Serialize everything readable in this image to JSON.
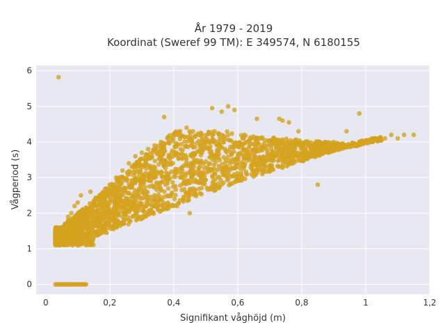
{
  "chart_data": {
    "type": "scatter",
    "title_lines": [
      "År 1979 - 2019",
      "Koordinat (Sweref 99 TM): E 349574, N 6180155"
    ],
    "xlabel": "Signifikant våghöjd (m)",
    "ylabel": "Vågperiod (s)",
    "xlim": [
      -0.03,
      1.2
    ],
    "ylim": [
      -0.28,
      6.15
    ],
    "x_ticks": [
      0,
      0.2,
      0.4,
      0.6,
      0.8,
      1.0,
      1.2
    ],
    "x_tick_labels": [
      "0",
      "0,2",
      "0,4",
      "0,6",
      "0,8",
      "1",
      "1,2"
    ],
    "y_ticks": [
      0,
      1,
      2,
      3,
      4,
      5,
      6
    ],
    "y_tick_labels": [
      "0",
      "1",
      "2",
      "3",
      "4",
      "5",
      "6"
    ],
    "grid": true,
    "marker_color": "#d4a21e",
    "plot_background": "#e8e8f2",
    "series": [
      {
        "x": [
          0.04,
          0.03,
          0.05,
          0.06,
          0.07,
          0.08,
          0.09,
          0.1,
          0.11,
          0.12,
          0.13,
          0.03,
          0.04,
          0.05,
          0.06,
          0.07,
          0.08,
          0.09,
          0.1,
          0.11,
          0.12,
          0.13,
          0.14,
          0.15,
          0.04,
          0.06,
          0.08,
          0.1,
          0.12,
          0.14,
          0.16,
          0.18,
          0.2,
          0.22,
          0.24,
          0.26,
          0.28,
          0.3,
          0.32,
          0.34,
          0.36,
          0.38,
          0.4,
          0.42,
          0.44,
          0.46,
          0.48,
          0.5,
          0.52,
          0.54,
          0.56,
          0.58,
          0.6,
          0.62,
          0.64,
          0.66,
          0.68,
          0.7,
          0.72,
          0.74,
          0.76,
          0.78,
          0.8,
          0.82,
          0.84,
          0.86,
          0.88,
          0.9,
          0.92,
          0.94,
          0.96,
          0.98,
          1.0,
          1.02,
          1.04,
          1.06,
          1.08,
          1.1,
          1.12,
          1.15,
          0.52,
          0.55,
          0.57,
          0.59,
          0.62,
          0.66,
          0.73,
          0.76,
          0.74,
          0.79,
          0.9,
          0.94,
          0.98,
          0.37,
          0.41,
          0.45,
          0.85,
          0.2,
          0.25,
          0.3,
          0.35,
          0.28
        ],
        "y": [
          5.82,
          1.5,
          1.3,
          1.6,
          1.8,
          2.0,
          2.2,
          2.3,
          2.5,
          2.1,
          1.9,
          1.2,
          1.4,
          1.5,
          1.7,
          1.9,
          1.2,
          1.3,
          1.1,
          1.6,
          1.4,
          1.8,
          2.6,
          2.2,
          0,
          0,
          0,
          0,
          0,
          2.0,
          2.4,
          2.6,
          2.8,
          3.0,
          3.2,
          3.4,
          3.6,
          3.7,
          3.8,
          3.9,
          4.0,
          4.1,
          4.2,
          4.3,
          4.4,
          4.3,
          4.2,
          4.1,
          4.0,
          3.9,
          3.8,
          3.7,
          3.6,
          3.6,
          3.5,
          3.4,
          3.5,
          3.5,
          3.6,
          3.6,
          3.6,
          3.7,
          3.7,
          3.7,
          3.7,
          3.8,
          3.8,
          3.8,
          3.8,
          3.9,
          3.9,
          4.0,
          4.0,
          4.1,
          4.1,
          4.1,
          4.2,
          4.1,
          4.2,
          4.2,
          4.95,
          4.85,
          5.0,
          4.9,
          4.2,
          4.65,
          4.65,
          4.55,
          4.6,
          4.3,
          4.0,
          4.3,
          4.8,
          4.7,
          2.2,
          2.0,
          2.8,
          2.5,
          2.0,
          1.9,
          2.2,
          2.1
        ],
        "name": ""
      }
    ]
  }
}
